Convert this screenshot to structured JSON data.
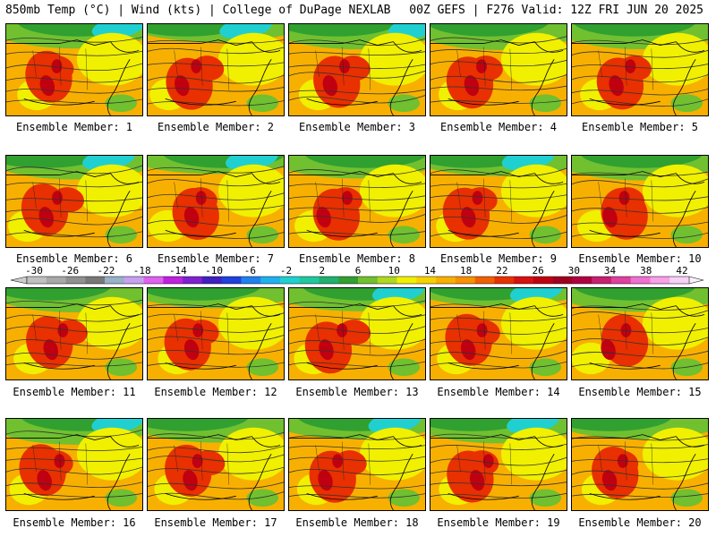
{
  "header": {
    "left": "850mb Temp (°C) | Wind (kts) | College of DuPage NEXLAB",
    "right": "00Z GEFS | F276 Valid: 12Z FRI JUN 20 2025"
  },
  "caption_prefix": "Ensemble Member:",
  "members": [
    {
      "label": "Ensemble Member: 1",
      "id": 1
    },
    {
      "label": "Ensemble Member: 2",
      "id": 2
    },
    {
      "label": "Ensemble Member: 3",
      "id": 3
    },
    {
      "label": "Ensemble Member: 4",
      "id": 4
    },
    {
      "label": "Ensemble Member: 5",
      "id": 5
    },
    {
      "label": "Ensemble Member: 6",
      "id": 6
    },
    {
      "label": "Ensemble Member: 7",
      "id": 7
    },
    {
      "label": "Ensemble Member: 8",
      "id": 8
    },
    {
      "label": "Ensemble Member: 9",
      "id": 9
    },
    {
      "label": "Ensemble Member: 10",
      "id": 10
    },
    {
      "label": "Ensemble Member: 11",
      "id": 11
    },
    {
      "label": "Ensemble Member: 12",
      "id": 12
    },
    {
      "label": "Ensemble Member: 13",
      "id": 13
    },
    {
      "label": "Ensemble Member: 14",
      "id": 14
    },
    {
      "label": "Ensemble Member: 15",
      "id": 15
    },
    {
      "label": "Ensemble Member: 16",
      "id": 16
    },
    {
      "label": "Ensemble Member: 17",
      "id": 17
    },
    {
      "label": "Ensemble Member: 18",
      "id": 18
    },
    {
      "label": "Ensemble Member: 19",
      "id": 19
    },
    {
      "label": "Ensemble Member: 20",
      "id": 20
    }
  ],
  "colorbar": {
    "ticks": [
      "-30",
      "-26",
      "-22",
      "-18",
      "-14",
      "-10",
      "-6",
      "-2",
      "2",
      "6",
      "10",
      "14",
      "18",
      "22",
      "26",
      "30",
      "34",
      "38",
      "42"
    ],
    "colors": [
      "#c0c0c0",
      "#a8a8a8",
      "#909090",
      "#787878",
      "#98b0c8",
      "#c8a0f0",
      "#e060f0",
      "#c020e0",
      "#8020d0",
      "#4020c0",
      "#2040e0",
      "#2080f0",
      "#20b0f0",
      "#20d0d0",
      "#20c8a0",
      "#20b070",
      "#30a030",
      "#70c030",
      "#b0d820",
      "#f0f000",
      "#f8d000",
      "#f8b000",
      "#f89000",
      "#f06000",
      "#e83000",
      "#d81010",
      "#c00010",
      "#a00020",
      "#b00040",
      "#c82070",
      "#e040a0",
      "#f070d0",
      "#f8a0e8",
      "#f8d0f8"
    ]
  },
  "palette": {
    "cold": "#20d0d0",
    "cool": "#30a030",
    "mild": "#70c030",
    "warm": "#f0f000",
    "orange": "#f8b000",
    "hot": "#e83000",
    "veryhot": "#c00010"
  }
}
